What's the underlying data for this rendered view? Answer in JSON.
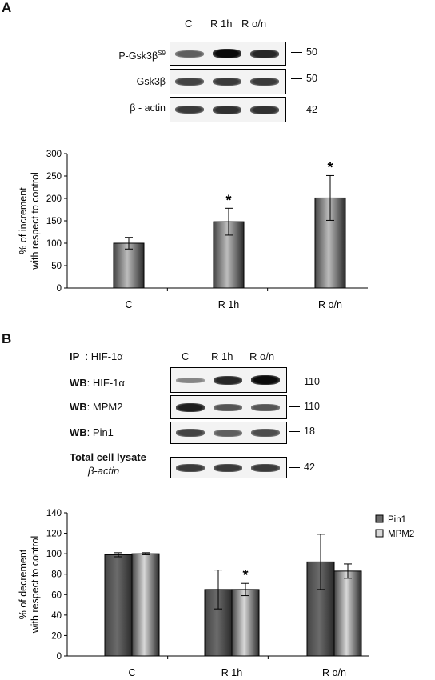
{
  "panel_a": {
    "letter": "A",
    "lanes": [
      "C",
      "R 1h",
      "R o/n"
    ],
    "blots": [
      {
        "label_main": "P-Gsk3β",
        "label_sup": "S9",
        "mw": "50",
        "bands": [
          0.55,
          1.0,
          0.85
        ]
      },
      {
        "label_main": "Gsk3β",
        "label_sup": "",
        "mw": "50",
        "bands": [
          0.7,
          0.75,
          0.75
        ]
      },
      {
        "label_main": "β - actin",
        "label_sup": "",
        "mw": "42",
        "bands": [
          0.75,
          0.8,
          0.8
        ]
      }
    ]
  },
  "panel_b": {
    "letter": "B",
    "ip_label": "IP",
    "ip_target": ": HIF-1α",
    "lanes": [
      "C",
      "R 1h",
      "R o/n"
    ],
    "blots": [
      {
        "prefix": "WB",
        "target": ": HIF-1α",
        "mw": "110",
        "bands": [
          0.35,
          0.85,
          1.0
        ]
      },
      {
        "prefix": "WB",
        "target": ": MPM2",
        "mw": "110",
        "bands": [
          0.9,
          0.6,
          0.6
        ]
      },
      {
        "prefix": "WB",
        "target": ": Pin1",
        "mw": "18",
        "bands": [
          0.7,
          0.55,
          0.65
        ]
      },
      {
        "prefix": "Total cell lysate",
        "target": "β-actin",
        "mw": "42",
        "bands": [
          0.75,
          0.75,
          0.75
        ]
      }
    ]
  },
  "chart_data": [
    {
      "type": "bar",
      "categories": [
        "C",
        "R 1h",
        "R o/n"
      ],
      "series": [
        {
          "values": [
            100,
            148,
            201
          ],
          "errors": [
            13,
            30,
            50
          ],
          "significant": [
            false,
            true,
            true
          ]
        }
      ],
      "ylabel_line1": "% of increment",
      "ylabel_line2": "with respect to control",
      "ylim": [
        0,
        300
      ],
      "yticks": [
        0,
        50,
        100,
        150,
        200,
        250,
        300
      ],
      "significance_marker": "*"
    },
    {
      "type": "bar",
      "categories": [
        "C",
        "R 1h",
        "R o/n"
      ],
      "series": [
        {
          "name": "Pin1",
          "color": "#6b6b6b",
          "values": [
            99,
            65,
            92
          ],
          "errors": [
            2,
            19,
            27
          ],
          "significant": [
            false,
            false,
            false
          ]
        },
        {
          "name": "MPM2",
          "color": "#d8d8d8",
          "values": [
            100,
            65,
            83
          ],
          "errors": [
            1,
            6,
            7
          ],
          "significant": [
            false,
            true,
            false
          ]
        }
      ],
      "ylabel_line1": "% of decrement",
      "ylabel_line2": "with respect to control",
      "ylim": [
        0,
        140
      ],
      "yticks": [
        0,
        20,
        40,
        60,
        80,
        100,
        120,
        140
      ],
      "significance_marker": "*",
      "legend_position": "top-right"
    }
  ]
}
